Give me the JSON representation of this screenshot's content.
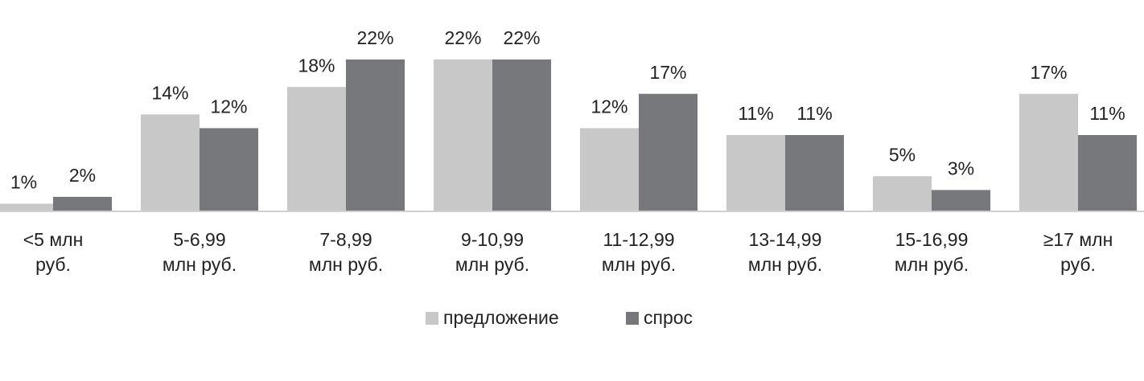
{
  "chart_data": {
    "type": "bar",
    "categories": [
      "<5 млн\nруб.",
      "5-6,99\nмлн руб.",
      "7-8,99\nмлн руб.",
      "9-10,99\nмлн руб.",
      "11-12,99\nмлн руб.",
      "13-14,99\nмлн руб.",
      "15-16,99\nмлн руб.",
      "≥17 млн\nруб."
    ],
    "series": [
      {
        "name": "предложение",
        "color": "#c8c8c8",
        "values": [
          1,
          14,
          18,
          22,
          12,
          11,
          5,
          17
        ],
        "value_labels": [
          "1%",
          "14%",
          "18%",
          "22%",
          "12%",
          "11%",
          "5%",
          "17%"
        ]
      },
      {
        "name": "спрос",
        "color": "#77787b",
        "values": [
          2,
          12,
          22,
          22,
          17,
          11,
          3,
          11
        ],
        "value_labels": [
          "2%",
          "12%",
          "22%",
          "22%",
          "17%",
          "11%",
          "3%",
          "11%"
        ]
      }
    ],
    "legend": "bottom"
  }
}
